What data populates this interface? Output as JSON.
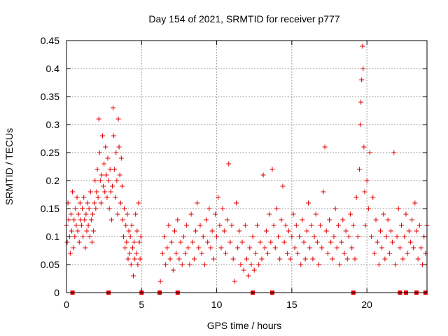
{
  "chart_data": {
    "type": "scatter",
    "title": "Day 154 of 2021, SRMTID for receiver p777",
    "xlabel": "GPS time / hours",
    "ylabel": "SRMTID / TECUs",
    "xlim": [
      0,
      24
    ],
    "ylim": [
      0,
      0.45
    ],
    "xticks": [
      0,
      5,
      10,
      15,
      20
    ],
    "xtick_labels": [
      "0",
      "5",
      "10",
      "15",
      "20"
    ],
    "yticks": [
      0,
      0.05,
      0.1,
      0.15,
      0.2,
      0.25,
      0.3,
      0.35,
      0.4,
      0.45
    ],
    "ytick_labels": [
      "0",
      "0.05",
      "0.1",
      "0.15",
      "0.2",
      "0.25",
      "0.3",
      "0.35",
      "0.4",
      "0.45"
    ],
    "grid": true,
    "marker": "+",
    "color": "#e00000",
    "series": [
      {
        "name": "SRMTID",
        "points": [
          [
            0.0,
            0.12
          ],
          [
            0.05,
            0.09
          ],
          [
            0.1,
            0.16
          ],
          [
            0.15,
            0.13
          ],
          [
            0.2,
            0.1
          ],
          [
            0.25,
            0.07
          ],
          [
            0.3,
            0.14
          ],
          [
            0.35,
            0.11
          ],
          [
            0.4,
            0.18
          ],
          [
            0.45,
            0.08
          ],
          [
            0.5,
            0.13
          ],
          [
            0.55,
            0.1
          ],
          [
            0.6,
            0.15
          ],
          [
            0.65,
            0.12
          ],
          [
            0.7,
            0.17
          ],
          [
            0.75,
            0.11
          ],
          [
            0.8,
            0.14
          ],
          [
            0.85,
            0.09
          ],
          [
            0.9,
            0.16
          ],
          [
            0.95,
            0.13
          ],
          [
            1.0,
            0.12
          ],
          [
            1.05,
            0.15
          ],
          [
            1.1,
            0.1
          ],
          [
            1.15,
            0.17
          ],
          [
            1.2,
            0.13
          ],
          [
            1.25,
            0.08
          ],
          [
            1.3,
            0.14
          ],
          [
            1.35,
            0.11
          ],
          [
            1.4,
            0.16
          ],
          [
            1.45,
            0.12
          ],
          [
            1.5,
            0.15
          ],
          [
            1.55,
            0.1
          ],
          [
            1.6,
            0.18
          ],
          [
            1.65,
            0.13
          ],
          [
            1.7,
            0.09
          ],
          [
            1.75,
            0.14
          ],
          [
            1.8,
            0.11
          ],
          [
            1.85,
            0.16
          ],
          [
            1.9,
            0.2
          ],
          [
            1.95,
            0.15
          ],
          [
            2.0,
            0.18
          ],
          [
            2.05,
            0.22
          ],
          [
            2.1,
            0.17
          ],
          [
            2.15,
            0.31
          ],
          [
            2.2,
            0.25
          ],
          [
            2.25,
            0.2
          ],
          [
            2.3,
            0.16
          ],
          [
            2.35,
            0.21
          ],
          [
            2.4,
            0.28
          ],
          [
            2.45,
            0.19
          ],
          [
            2.5,
            0.23
          ],
          [
            2.55,
            0.18
          ],
          [
            2.6,
            0.26
          ],
          [
            2.65,
            0.21
          ],
          [
            2.7,
            0.17
          ],
          [
            2.75,
            0.24
          ],
          [
            2.8,
            0.2
          ],
          [
            2.85,
            0.15
          ],
          [
            2.9,
            0.22
          ],
          [
            2.95,
            0.18
          ],
          [
            3.0,
            0.13
          ],
          [
            3.05,
            0.19
          ],
          [
            3.1,
            0.33
          ],
          [
            3.15,
            0.28
          ],
          [
            3.2,
            0.22
          ],
          [
            3.25,
            0.17
          ],
          [
            3.3,
            0.25
          ],
          [
            3.35,
            0.2
          ],
          [
            3.4,
            0.14
          ],
          [
            3.45,
            0.31
          ],
          [
            3.5,
            0.26
          ],
          [
            3.55,
            0.21
          ],
          [
            3.6,
            0.16
          ],
          [
            3.65,
            0.24
          ],
          [
            3.7,
            0.19
          ],
          [
            3.75,
            0.13
          ],
          [
            3.8,
            0.1
          ],
          [
            3.85,
            0.15
          ],
          [
            3.9,
            0.08
          ],
          [
            3.95,
            0.12
          ],
          [
            4.0,
            0.09
          ],
          [
            4.05,
            0.14
          ],
          [
            4.1,
            0.06
          ],
          [
            4.15,
            0.11
          ],
          [
            4.2,
            0.07
          ],
          [
            4.25,
            0.1
          ],
          [
            4.3,
            0.05
          ],
          [
            4.35,
            0.12
          ],
          [
            4.4,
            0.08
          ],
          [
            4.45,
            0.03
          ],
          [
            4.5,
            0.09
          ],
          [
            4.55,
            0.06
          ],
          [
            4.6,
            0.14
          ],
          [
            4.65,
            0.07
          ],
          [
            4.7,
            0.11
          ],
          [
            4.75,
            0.05
          ],
          [
            4.8,
            0.16
          ],
          [
            4.85,
            0.09
          ],
          [
            4.9,
            0.06
          ],
          [
            4.95,
            0.1
          ],
          [
            6.25,
            0.02
          ],
          [
            6.4,
            0.07
          ],
          [
            6.5,
            0.1
          ],
          [
            6.6,
            0.05
          ],
          [
            6.7,
            0.08
          ],
          [
            6.8,
            0.12
          ],
          [
            6.9,
            0.06
          ],
          [
            7.0,
            0.09
          ],
          [
            7.1,
            0.04
          ],
          [
            7.2,
            0.11
          ],
          [
            7.3,
            0.07
          ],
          [
            7.4,
            0.13
          ],
          [
            7.5,
            0.06
          ],
          [
            7.6,
            0.09
          ],
          [
            7.7,
            0.05
          ],
          [
            7.8,
            0.1
          ],
          [
            7.9,
            0.07
          ],
          [
            8.0,
            0.12
          ],
          [
            8.1,
            0.08
          ],
          [
            8.2,
            0.05
          ],
          [
            8.3,
            0.14
          ],
          [
            8.4,
            0.09
          ],
          [
            8.5,
            0.06
          ],
          [
            8.6,
            0.11
          ],
          [
            8.7,
            0.16
          ],
          [
            8.8,
            0.08
          ],
          [
            8.9,
            0.12
          ],
          [
            9.0,
            0.07
          ],
          [
            9.1,
            0.1
          ],
          [
            9.2,
            0.05
          ],
          [
            9.3,
            0.13
          ],
          [
            9.4,
            0.09
          ],
          [
            9.5,
            0.15
          ],
          [
            9.6,
            0.08
          ],
          [
            9.7,
            0.11
          ],
          [
            9.8,
            0.06
          ],
          [
            9.9,
            0.14
          ],
          [
            10.0,
            0.1
          ],
          [
            10.1,
            0.17
          ],
          [
            10.2,
            0.12
          ],
          [
            10.3,
            0.08
          ],
          [
            10.4,
            0.15
          ],
          [
            10.5,
            0.11
          ],
          [
            10.6,
            0.07
          ],
          [
            10.7,
            0.13
          ],
          [
            10.8,
            0.23
          ],
          [
            10.9,
            0.09
          ],
          [
            11.0,
            0.12
          ],
          [
            11.1,
            0.06
          ],
          [
            11.2,
            0.02
          ],
          [
            11.3,
            0.16
          ],
          [
            11.4,
            0.08
          ],
          [
            11.5,
            0.11
          ],
          [
            11.6,
            0.05
          ],
          [
            11.7,
            0.09
          ],
          [
            11.8,
            0.04
          ],
          [
            11.9,
            0.12
          ],
          [
            12.0,
            0.06
          ],
          [
            12.1,
            0.03
          ],
          [
            12.2,
            0.08
          ],
          [
            12.3,
            0.05
          ],
          [
            12.4,
            0.1
          ],
          [
            12.5,
            0.04
          ],
          [
            12.6,
            0.07
          ],
          [
            12.7,
            0.12
          ],
          [
            12.8,
            0.05
          ],
          [
            12.9,
            0.09
          ],
          [
            13.0,
            0.06
          ],
          [
            13.1,
            0.21
          ],
          [
            13.2,
            0.08
          ],
          [
            13.3,
            0.11
          ],
          [
            13.4,
            0.07
          ],
          [
            13.5,
            0.14
          ],
          [
            13.6,
            0.09
          ],
          [
            13.7,
            0.22
          ],
          [
            13.8,
            0.12
          ],
          [
            13.9,
            0.08
          ],
          [
            14.0,
            0.15
          ],
          [
            14.1,
            0.1
          ],
          [
            14.2,
            0.06
          ],
          [
            14.3,
            0.13
          ],
          [
            14.4,
            0.19
          ],
          [
            14.5,
            0.09
          ],
          [
            14.6,
            0.12
          ],
          [
            14.7,
            0.07
          ],
          [
            14.8,
            0.11
          ],
          [
            14.9,
            0.06
          ],
          [
            15.0,
            0.1
          ],
          [
            15.1,
            0.14
          ],
          [
            15.2,
            0.08
          ],
          [
            15.3,
            0.12
          ],
          [
            15.4,
            0.07
          ],
          [
            15.5,
            0.1
          ],
          [
            15.6,
            0.05
          ],
          [
            15.7,
            0.13
          ],
          [
            15.8,
            0.09
          ],
          [
            15.9,
            0.06
          ],
          [
            16.0,
            0.11
          ],
          [
            16.1,
            0.16
          ],
          [
            16.2,
            0.08
          ],
          [
            16.3,
            0.12
          ],
          [
            16.4,
            0.06
          ],
          [
            16.5,
            0.1
          ],
          [
            16.6,
            0.14
          ],
          [
            16.7,
            0.09
          ],
          [
            16.8,
            0.05
          ],
          [
            16.9,
            0.12
          ],
          [
            17.0,
            0.08
          ],
          [
            17.1,
            0.18
          ],
          [
            17.2,
            0.26
          ],
          [
            17.3,
            0.11
          ],
          [
            17.4,
            0.07
          ],
          [
            17.5,
            0.13
          ],
          [
            17.6,
            0.09
          ],
          [
            17.7,
            0.06
          ],
          [
            17.8,
            0.1
          ],
          [
            17.9,
            0.15
          ],
          [
            18.0,
            0.08
          ],
          [
            18.1,
            0.12
          ],
          [
            18.2,
            0.05
          ],
          [
            18.3,
            0.09
          ],
          [
            18.4,
            0.13
          ],
          [
            18.5,
            0.07
          ],
          [
            18.6,
            0.11
          ],
          [
            18.7,
            0.06
          ],
          [
            18.8,
            0.1
          ],
          [
            18.9,
            0.14
          ],
          [
            19.0,
            0.08
          ],
          [
            19.1,
            0.12
          ],
          [
            19.2,
            0.06
          ],
          [
            19.3,
            0.17
          ],
          [
            19.4,
            0.1
          ],
          [
            19.5,
            0.22
          ],
          [
            19.55,
            0.3
          ],
          [
            19.6,
            0.34
          ],
          [
            19.65,
            0.38
          ],
          [
            19.7,
            0.44
          ],
          [
            19.75,
            0.4
          ],
          [
            19.8,
            0.26
          ],
          [
            19.85,
            0.18
          ],
          [
            19.9,
            0.12
          ],
          [
            20.0,
            0.2
          ],
          [
            20.1,
            0.15
          ],
          [
            20.2,
            0.25
          ],
          [
            20.3,
            0.1
          ],
          [
            20.4,
            0.17
          ],
          [
            20.5,
            0.07
          ],
          [
            20.6,
            0.13
          ],
          [
            20.7,
            0.09
          ],
          [
            20.8,
            0.05
          ],
          [
            20.9,
            0.11
          ],
          [
            21.0,
            0.08
          ],
          [
            21.1,
            0.14
          ],
          [
            21.2,
            0.06
          ],
          [
            21.3,
            0.1
          ],
          [
            21.4,
            0.13
          ],
          [
            21.5,
            0.07
          ],
          [
            21.6,
            0.11
          ],
          [
            21.7,
            0.09
          ],
          [
            21.8,
            0.25
          ],
          [
            21.9,
            0.05
          ],
          [
            22.0,
            0.1
          ],
          [
            22.1,
            0.15
          ],
          [
            22.2,
            0.08
          ],
          [
            22.3,
            0.12
          ],
          [
            22.4,
            0.06
          ],
          [
            22.5,
            0.1
          ],
          [
            22.6,
            0.14
          ],
          [
            22.7,
            0.07
          ],
          [
            22.8,
            0.11
          ],
          [
            22.9,
            0.09
          ],
          [
            23.0,
            0.13
          ],
          [
            23.1,
            0.08
          ],
          [
            23.2,
            0.16
          ],
          [
            23.3,
            0.11
          ],
          [
            23.4,
            0.06
          ],
          [
            23.5,
            0.12
          ],
          [
            23.6,
            0.08
          ],
          [
            23.7,
            0.05
          ],
          [
            23.8,
            0.1
          ],
          [
            23.9,
            0.07
          ],
          [
            24.0,
            0.12
          ]
        ],
        "zero_points": [
          0.4,
          2.8,
          5.0,
          6.2,
          7.4,
          12.4,
          13.7,
          19.1,
          22.2,
          22.6,
          23.3,
          23.9
        ]
      }
    ]
  }
}
